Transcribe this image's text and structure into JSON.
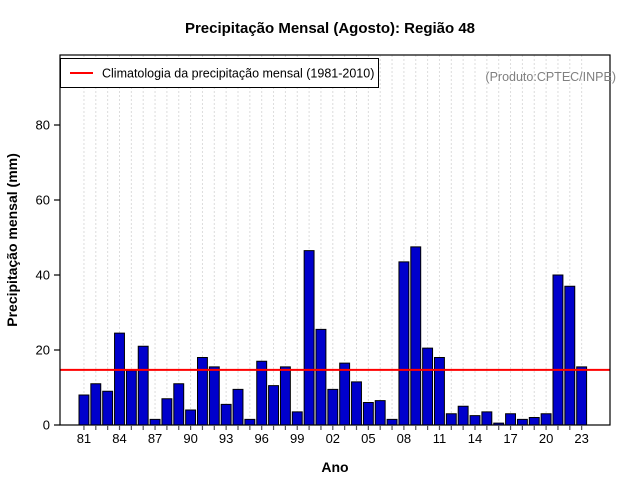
{
  "chart_data": {
    "type": "bar",
    "title": "Precipitação Mensal (Agosto): Região 48",
    "xlabel": "Ano",
    "ylabel": "Precipitação mensal (mm)",
    "annotation": "(Produto:CPTEC/INPE)",
    "legend_label": "Climatologia da precipitação mensal (1981-2010)",
    "legend_position": "topleft",
    "grid": "vertical-dashed-per-year",
    "ylim": [
      0,
      98.5
    ],
    "yticks": [
      0,
      20,
      40,
      60,
      80
    ],
    "x_tick_label_years": [
      1981,
      1984,
      1987,
      1990,
      1993,
      1996,
      1999,
      2002,
      2005,
      2008,
      2011,
      2014,
      2017,
      2020,
      2023
    ],
    "x_tick_labels": [
      "81",
      "84",
      "87",
      "90",
      "93",
      "96",
      "99",
      "02",
      "05",
      "08",
      "11",
      "14",
      "17",
      "20",
      "23"
    ],
    "climatology_value": 14.7,
    "years": [
      1981,
      1982,
      1983,
      1984,
      1985,
      1986,
      1987,
      1988,
      1989,
      1990,
      1991,
      1992,
      1993,
      1994,
      1995,
      1996,
      1997,
      1998,
      1999,
      2000,
      2001,
      2002,
      2003,
      2004,
      2005,
      2006,
      2007,
      2008,
      2009,
      2010,
      2011,
      2012,
      2013,
      2014,
      2015,
      2016,
      2017,
      2018,
      2019,
      2020,
      2021,
      2022,
      2023
    ],
    "values": [
      8,
      11,
      9,
      24.5,
      14.5,
      21,
      1.5,
      7,
      11,
      4,
      18,
      15.5,
      5.5,
      9.5,
      1.5,
      17,
      10.5,
      15.5,
      3.5,
      46.5,
      25.5,
      9.5,
      16.5,
      11.5,
      6,
      6.5,
      1.5,
      43.5,
      47.5,
      20.5,
      18,
      3,
      5,
      2.5,
      3.5,
      0.5,
      3,
      1.5,
      2,
      3,
      40,
      37,
      15.5
    ],
    "colors": {
      "bar_fill": "#0000CC",
      "bar_border": "#000000",
      "climatology_line": "#FF0000",
      "grid_line": "#DCDCDC",
      "annotation_text": "#808080",
      "axis_color": "#000000",
      "tick_color": "#555555"
    }
  }
}
